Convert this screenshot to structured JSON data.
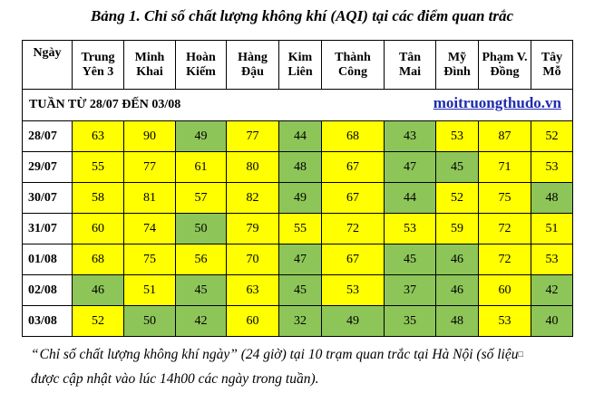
{
  "caption": "Bảng 1. Chỉ số chất lượng không khí (AQI) tại các điểm quan trắc",
  "columns": [
    {
      "l1": "Ngày",
      "l2": ""
    },
    {
      "l1": "Trung",
      "l2": "Yên 3"
    },
    {
      "l1": "Minh",
      "l2": "Khai"
    },
    {
      "l1": "Hoàn",
      "l2": "Kiếm"
    },
    {
      "l1": "Hàng",
      "l2": "Đậu"
    },
    {
      "l1": "Kim",
      "l2": "Liên"
    },
    {
      "l1": "Thành",
      "l2": "Công"
    },
    {
      "l1": "Tân",
      "l2": "Mai"
    },
    {
      "l1": "Mỹ",
      "l2": "Đình"
    },
    {
      "l1": "Phạm V.",
      "l2": "Đồng"
    },
    {
      "l1": "Tây",
      "l2": "Mỗ"
    }
  ],
  "week_label": "TUẦN TỪ 28/07 ĐẾN 03/08",
  "site_name": "moitruongthudo.vn",
  "rows": [
    {
      "date": "28/07",
      "values": [
        "63",
        "90",
        "49",
        "77",
        "44",
        "68",
        "43",
        "53",
        "87",
        "52"
      ],
      "colors": [
        "y",
        "y",
        "g",
        "y",
        "g",
        "y",
        "g",
        "y",
        "y",
        "y"
      ]
    },
    {
      "date": "29/07",
      "values": [
        "55",
        "77",
        "61",
        "80",
        "48",
        "67",
        "47",
        "45",
        "71",
        "53"
      ],
      "colors": [
        "y",
        "y",
        "y",
        "y",
        "g",
        "y",
        "g",
        "g",
        "y",
        "y"
      ]
    },
    {
      "date": "30/07",
      "values": [
        "58",
        "81",
        "57",
        "82",
        "49",
        "67",
        "44",
        "52",
        "75",
        "48"
      ],
      "colors": [
        "y",
        "y",
        "y",
        "y",
        "g",
        "y",
        "g",
        "y",
        "y",
        "g"
      ]
    },
    {
      "date": "31/07",
      "values": [
        "60",
        "74",
        "50",
        "79",
        "55",
        "72",
        "53",
        "59",
        "72",
        "51"
      ],
      "colors": [
        "y",
        "y",
        "g",
        "y",
        "y",
        "y",
        "y",
        "y",
        "y",
        "y"
      ]
    },
    {
      "date": "01/08",
      "values": [
        "68",
        "75",
        "56",
        "70",
        "47",
        "67",
        "45",
        "46",
        "72",
        "53"
      ],
      "colors": [
        "y",
        "y",
        "y",
        "y",
        "g",
        "y",
        "g",
        "g",
        "y",
        "y"
      ]
    },
    {
      "date": "02/08",
      "values": [
        "46",
        "51",
        "45",
        "63",
        "45",
        "53",
        "37",
        "46",
        "60",
        "42"
      ],
      "colors": [
        "g",
        "y",
        "g",
        "y",
        "g",
        "y",
        "g",
        "g",
        "y",
        "g"
      ]
    },
    {
      "date": "03/08",
      "values": [
        "52",
        "50",
        "42",
        "60",
        "32",
        "49",
        "35",
        "48",
        "53",
        "40"
      ],
      "colors": [
        "y",
        "g",
        "g",
        "y",
        "g",
        "g",
        "g",
        "g",
        "y",
        "g"
      ]
    }
  ],
  "note_open_quote": "“",
  "note_part1": "Chỉ số chất lượng không khí ngày",
  "note_close_quote": "”",
  "note_part2": " (24 giờ) tại 10 trạm quan trắc tại Hà Nội (số liệu",
  "note_line2": "được cập nhật vào lúc 14h00 các ngày trong tuần).",
  "note_marker": "□",
  "colors": {
    "yellow": "#ffff00",
    "green": "#8dc558",
    "link": "#1f2bb0"
  }
}
